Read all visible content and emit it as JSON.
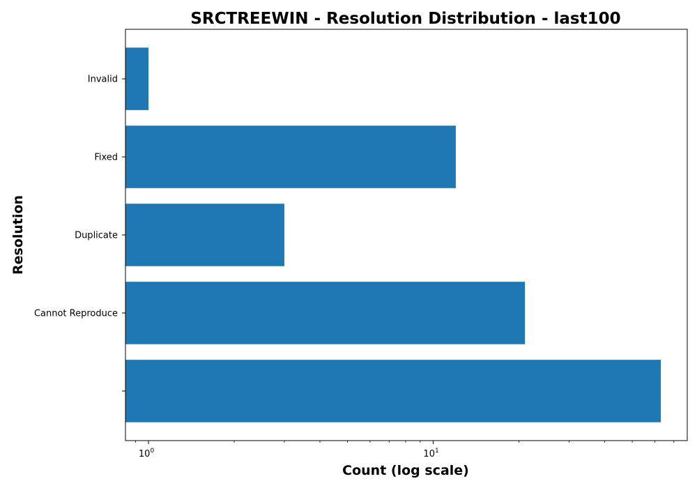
{
  "chart_data": {
    "type": "bar",
    "orientation": "horizontal",
    "title": "SRCTREEWIN - Resolution Distribution - last100",
    "xlabel": "Count (log scale)",
    "ylabel": "Resolution",
    "xscale": "log",
    "xlim": [
      0.83,
      78
    ],
    "categories": [
      "",
      "Cannot Reproduce",
      "Duplicate",
      "Fixed",
      "Invalid"
    ],
    "values": [
      63,
      21,
      3,
      12,
      1
    ],
    "x_ticks": [
      {
        "value": 1,
        "base": "10",
        "exp": "0"
      },
      {
        "value": 10,
        "base": "10",
        "exp": "1"
      }
    ],
    "bar_color": "#1f77b4",
    "grid": false,
    "legend": null
  }
}
